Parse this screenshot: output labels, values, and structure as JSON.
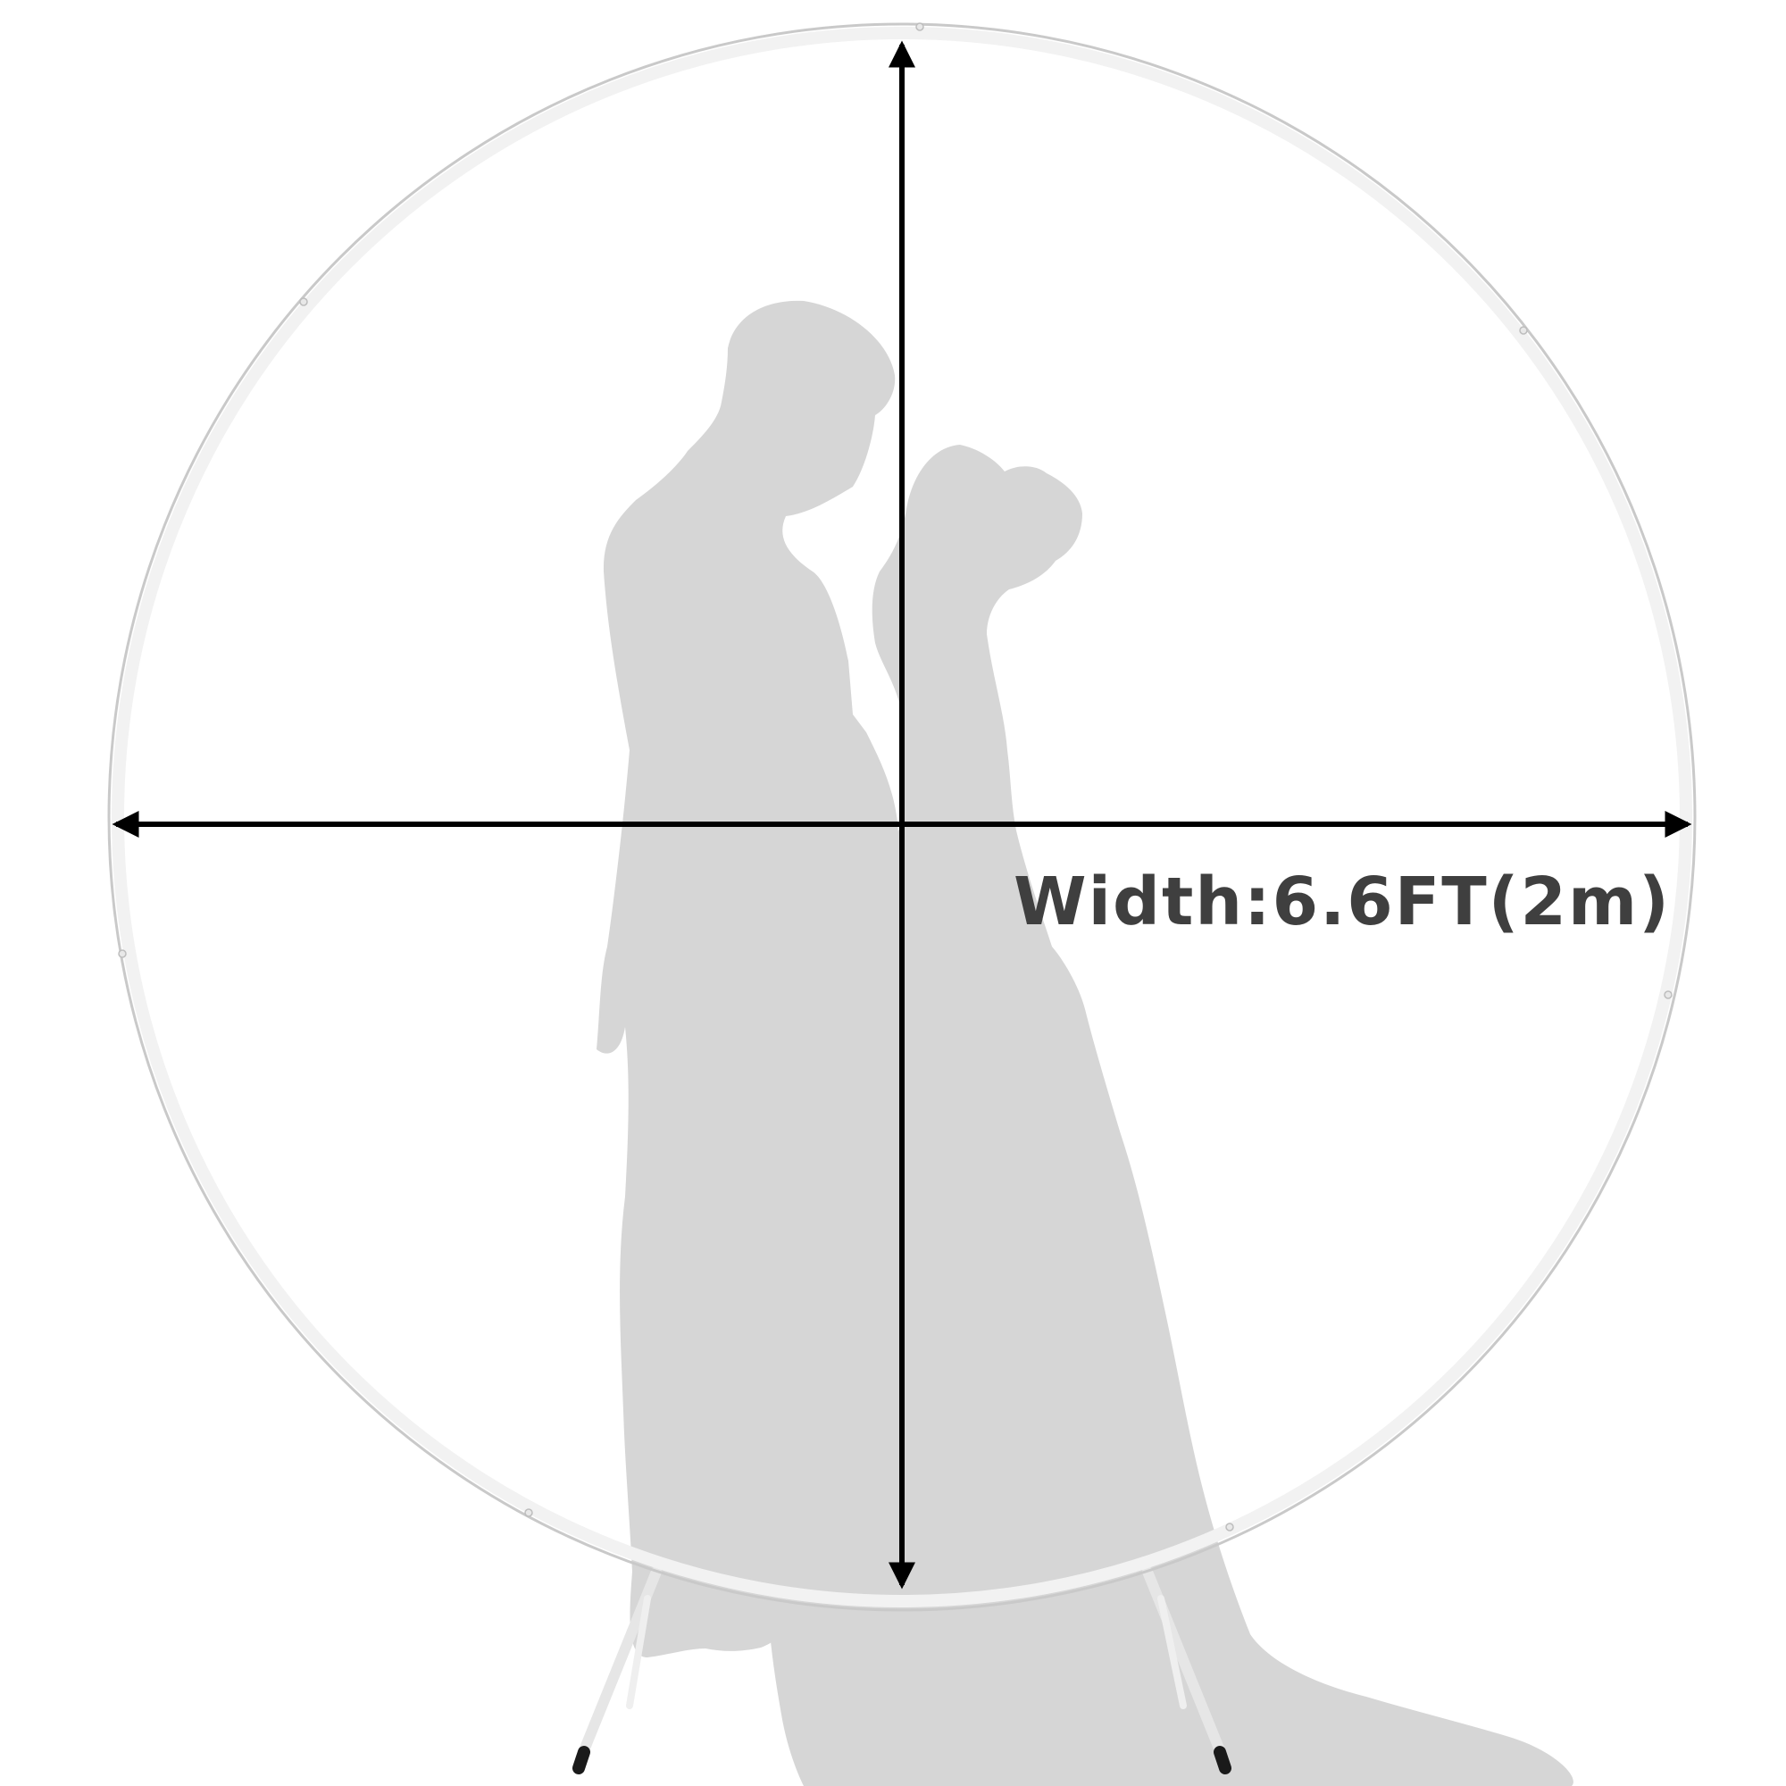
{
  "diagram": {
    "width_label": "Width:6.6FT(2m)",
    "colors": {
      "background": "#ffffff",
      "silhouette": "#d6d6d6",
      "ring": "#f2f2f2",
      "ring_shadow": "#c9c9c9",
      "arrow": "#000000",
      "label": "#3f3f3f",
      "foot_caps": "#1a1a1a"
    },
    "icons": {
      "silhouette": "couple-silhouette-icon",
      "arch": "round-arch-frame-icon",
      "width_arrow": "double-arrow-horizontal-icon",
      "height_arrow": "double-arrow-vertical-icon"
    }
  }
}
